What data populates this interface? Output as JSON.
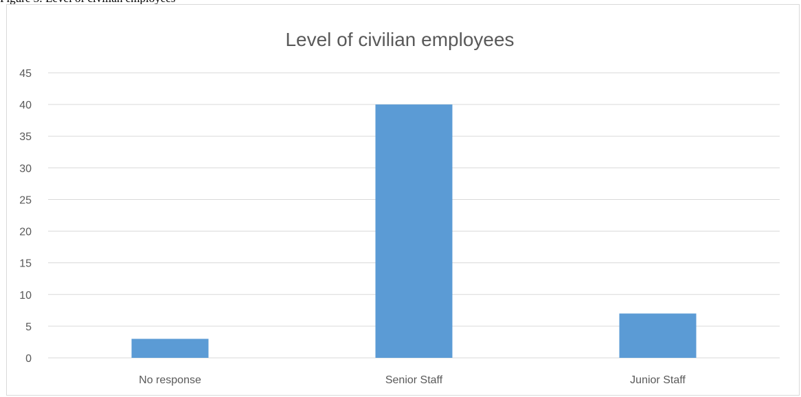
{
  "caption": "Figure 3: Level of civilian employees",
  "chart_data": {
    "type": "bar",
    "title": "Level of civilian employees",
    "categories": [
      "No response",
      "Senior Staff",
      "Junior Staff"
    ],
    "values": [
      3,
      40,
      7
    ],
    "ylim": [
      0,
      45
    ],
    "yticks": [
      0,
      5,
      10,
      15,
      20,
      25,
      30,
      35,
      40,
      45
    ],
    "grid": true,
    "legend": "none",
    "colors": {
      "bar": "#5b9bd5",
      "grid": "#d9d9d9",
      "text": "#595959"
    }
  }
}
